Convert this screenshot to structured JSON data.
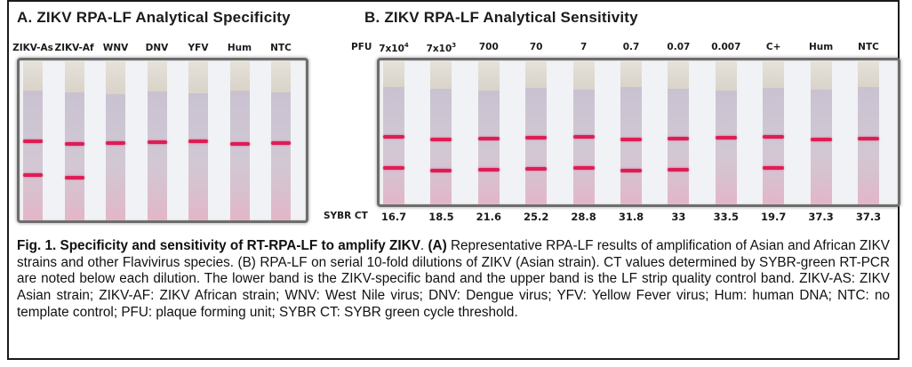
{
  "panel_a": {
    "title": "A.  ZIKV RPA-LF Analytical Specificity",
    "lanes": [
      {
        "label": "ZIKV-As",
        "control_band": true,
        "test_band": true
      },
      {
        "label": "ZIKV-Af",
        "control_band": true,
        "test_band": true
      },
      {
        "label": "WNV",
        "control_band": true,
        "test_band": false
      },
      {
        "label": "DNV",
        "control_band": true,
        "test_band": false
      },
      {
        "label": "YFV",
        "control_band": true,
        "test_band": false
      },
      {
        "label": "Hum",
        "control_band": true,
        "test_band": false
      },
      {
        "label": "NTC",
        "control_band": true,
        "test_band": false
      }
    ]
  },
  "panel_b": {
    "title": "B.  ZIKV RPA-LF Analytical Sensitivity",
    "pfu_row_label": "PFU",
    "ct_row_label": "SYBR  CT",
    "lanes": [
      {
        "pfu": "7x10",
        "pfu_sup": "4",
        "sybr_ct": "16.7",
        "control_band": true,
        "test_band": true
      },
      {
        "pfu": "7x10",
        "pfu_sup": "3",
        "sybr_ct": "18.5",
        "control_band": true,
        "test_band": true
      },
      {
        "pfu": "700",
        "pfu_sup": "",
        "sybr_ct": "21.6",
        "control_band": true,
        "test_band": true
      },
      {
        "pfu": "70",
        "pfu_sup": "",
        "sybr_ct": "25.2",
        "control_band": true,
        "test_band": true
      },
      {
        "pfu": "7",
        "pfu_sup": "",
        "sybr_ct": "28.8",
        "control_band": true,
        "test_band": true
      },
      {
        "pfu": "0.7",
        "pfu_sup": "",
        "sybr_ct": "31.8",
        "control_band": true,
        "test_band": true
      },
      {
        "pfu": "0.07",
        "pfu_sup": "",
        "sybr_ct": "33",
        "control_band": true,
        "test_band": true
      },
      {
        "pfu": "0.007",
        "pfu_sup": "",
        "sybr_ct": "33.5",
        "control_band": true,
        "test_band": false
      },
      {
        "pfu": "C+",
        "pfu_sup": "",
        "sybr_ct": "19.7",
        "control_band": true,
        "test_band": true
      },
      {
        "pfu": "Hum",
        "pfu_sup": "",
        "sybr_ct": "37.3",
        "control_band": true,
        "test_band": false
      },
      {
        "pfu": "NTC",
        "pfu_sup": "",
        "sybr_ct": "37.3",
        "control_band": true,
        "test_band": false
      }
    ]
  },
  "colors": {
    "band": "#de1d56",
    "frame": "#1a1a1a",
    "photo_border": "#6d6d6d"
  },
  "caption": {
    "fig_label": "Fig. 1. Specificity and sensitivity of RT-RPA-LF to amplify ZIKV",
    "after_label": ". ",
    "part_a_label": "(A)",
    "text": " Representative RPA-LF results of amplification of Asian and African ZIKV strains and other Flavivirus species. (B) RPA-LF on serial 10-fold dilutions of ZIKV (Asian strain). CT values determined by SYBR-green RT-PCR are noted below each dilution. The lower band is the ZIKV-specific band and the upper band is the LF  strip quality control band. ZIKV-AS: ZIKV Asian strain; ZIKV-AF: ZIKV African strain; WNV: West Nile virus; DNV: Dengue virus; YFV: Yellow Fever virus; Hum: human DNA; NTC: no template control; PFU: plaque forming unit; SYBR CT: SYBR green cycle threshold."
  }
}
